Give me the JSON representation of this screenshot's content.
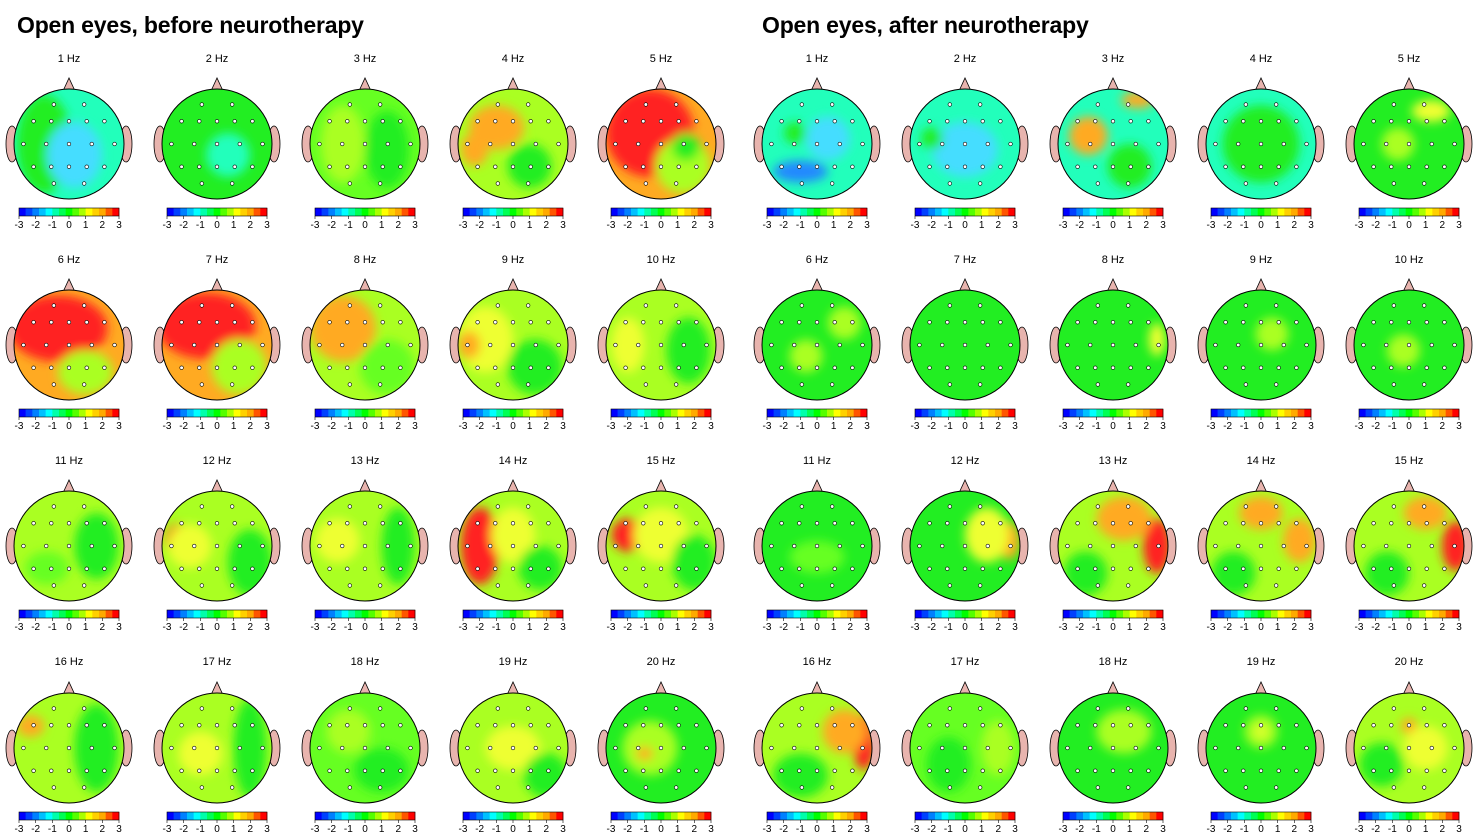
{
  "panels": [
    {
      "title": "Open eyes, before neurotherapy"
    },
    {
      "title": "Open eyes, after neurotherapy"
    }
  ],
  "frequencies": [
    "1 Hz",
    "2 Hz",
    "3 Hz",
    "4 Hz",
    "5 Hz",
    "6 Hz",
    "7 Hz",
    "8 Hz",
    "9 Hz",
    "10 Hz",
    "11 Hz",
    "12 Hz",
    "13 Hz",
    "14 Hz",
    "15 Hz",
    "16 Hz",
    "17 Hz",
    "18 Hz",
    "19 Hz",
    "20 Hz"
  ],
  "colorbar": {
    "ticks": [
      "-3",
      "-2",
      "-1",
      "0",
      "1",
      "2",
      "3"
    ],
    "colors": [
      "#0000ff",
      "#0040ff",
      "#0080ff",
      "#00c0ff",
      "#00ffff",
      "#00ffaa",
      "#00ff55",
      "#00ff00",
      "#55ff00",
      "#aaff00",
      "#ffff00",
      "#ffd000",
      "#ffaa00",
      "#ff5500",
      "#ff0000"
    ]
  },
  "colors": {
    "head_outline": "#000000",
    "ear_nose_fill": "#e8b4ae",
    "electrode": "#ffffff"
  }
}
